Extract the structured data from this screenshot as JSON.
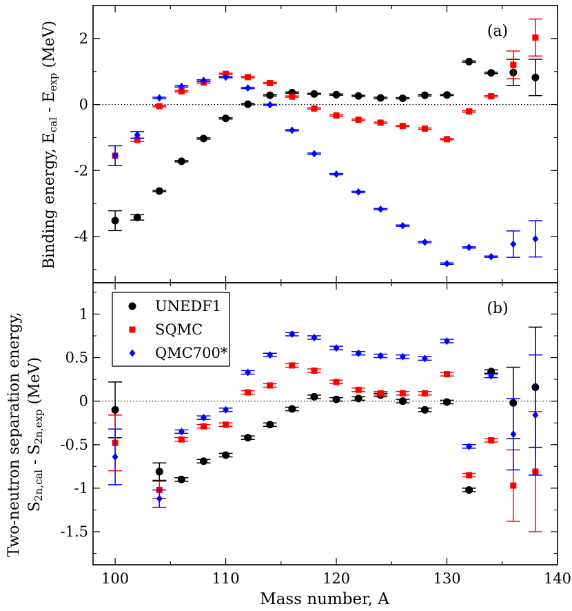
{
  "chart_data": [
    {
      "type": "scatter",
      "panel_label": "(a)",
      "ylabel_main": "Binding energy, E",
      "ylabel_sub1": "cal",
      "ylabel_mid": " - E",
      "ylabel_sub2": "exp",
      "ylabel_unit": " (MeV)",
      "ylim": [
        -5.4,
        3.0
      ],
      "xlim": [
        98,
        140
      ],
      "yticks": [
        -4,
        -2,
        0,
        2
      ],
      "ytick_labels": [
        "-4",
        "-2",
        "0",
        "2"
      ],
      "series": [
        {
          "name": "UNEDF1",
          "color": "#000000",
          "marker": "circle",
          "points": [
            {
              "x": 100,
              "y": -3.52,
              "err": 0.3
            },
            {
              "x": 102,
              "y": -3.42,
              "err": 0.08
            },
            {
              "x": 104,
              "y": -2.62,
              "err": 0.02
            },
            {
              "x": 106,
              "y": -1.72,
              "err": 0.02
            },
            {
              "x": 108,
              "y": -1.03,
              "err": 0.02
            },
            {
              "x": 110,
              "y": -0.42,
              "err": 0.02
            },
            {
              "x": 112,
              "y": 0.01,
              "err": 0.02
            },
            {
              "x": 114,
              "y": 0.28,
              "err": 0.02
            },
            {
              "x": 116,
              "y": 0.36,
              "err": 0.02
            },
            {
              "x": 118,
              "y": 0.32,
              "err": 0.02
            },
            {
              "x": 120,
              "y": 0.3,
              "err": 0.02
            },
            {
              "x": 122,
              "y": 0.26,
              "err": 0.02
            },
            {
              "x": 124,
              "y": 0.2,
              "err": 0.02
            },
            {
              "x": 126,
              "y": 0.19,
              "err": 0.02
            },
            {
              "x": 128,
              "y": 0.28,
              "err": 0.02
            },
            {
              "x": 130,
              "y": 0.29,
              "err": 0.02
            },
            {
              "x": 132,
              "y": 1.3,
              "err": 0.02
            },
            {
              "x": 134,
              "y": 0.96,
              "err": 0.02
            },
            {
              "x": 136,
              "y": 0.97,
              "err": 0.4
            },
            {
              "x": 138,
              "y": 0.82,
              "err": 0.55
            }
          ]
        },
        {
          "name": "SQMC",
          "color": "#ff0000",
          "marker": "square",
          "points": [
            {
              "x": 100,
              "y": -1.55,
              "err": 0.3
            },
            {
              "x": 102,
              "y": -1.07,
              "err": 0.05
            },
            {
              "x": 104,
              "y": -0.05,
              "err": 0.02
            },
            {
              "x": 106,
              "y": 0.4,
              "err": 0.02
            },
            {
              "x": 108,
              "y": 0.67,
              "err": 0.02
            },
            {
              "x": 110,
              "y": 0.93,
              "err": 0.02
            },
            {
              "x": 112,
              "y": 0.83,
              "err": 0.02
            },
            {
              "x": 114,
              "y": 0.65,
              "err": 0.02
            },
            {
              "x": 116,
              "y": 0.24,
              "err": 0.02
            },
            {
              "x": 118,
              "y": -0.12,
              "err": 0.02
            },
            {
              "x": 120,
              "y": -0.33,
              "err": 0.02
            },
            {
              "x": 122,
              "y": -0.46,
              "err": 0.02
            },
            {
              "x": 124,
              "y": -0.55,
              "err": 0.02
            },
            {
              "x": 126,
              "y": -0.65,
              "err": 0.02
            },
            {
              "x": 128,
              "y": -0.73,
              "err": 0.02
            },
            {
              "x": 130,
              "y": -1.05,
              "err": 0.02
            },
            {
              "x": 132,
              "y": -0.21,
              "err": 0.02
            },
            {
              "x": 134,
              "y": 0.25,
              "err": 0.02
            },
            {
              "x": 136,
              "y": 1.2,
              "err": 0.42
            },
            {
              "x": 138,
              "y": 2.03,
              "err": 0.56
            }
          ]
        },
        {
          "name": "QMC700*",
          "color": "#0000ff",
          "marker": "diamond",
          "points": [
            {
              "x": 100,
              "y": -1.55,
              "err": 0.3
            },
            {
              "x": 102,
              "y": -0.92,
              "err": 0.1
            },
            {
              "x": 104,
              "y": 0.2,
              "err": 0.02
            },
            {
              "x": 106,
              "y": 0.55,
              "err": 0.02
            },
            {
              "x": 108,
              "y": 0.73,
              "err": 0.02
            },
            {
              "x": 110,
              "y": 0.83,
              "err": 0.02
            },
            {
              "x": 112,
              "y": 0.5,
              "err": 0.02
            },
            {
              "x": 114,
              "y": -0.01,
              "err": 0.02
            },
            {
              "x": 116,
              "y": -0.78,
              "err": 0.02
            },
            {
              "x": 118,
              "y": -1.49,
              "err": 0.02
            },
            {
              "x": 120,
              "y": -2.11,
              "err": 0.02
            },
            {
              "x": 122,
              "y": -2.65,
              "err": 0.02
            },
            {
              "x": 124,
              "y": -3.17,
              "err": 0.02
            },
            {
              "x": 126,
              "y": -3.67,
              "err": 0.02
            },
            {
              "x": 128,
              "y": -4.17,
              "err": 0.02
            },
            {
              "x": 130,
              "y": -4.82,
              "err": 0.02
            },
            {
              "x": 132,
              "y": -4.33,
              "err": 0.02
            },
            {
              "x": 134,
              "y": -4.61,
              "err": 0.02
            },
            {
              "x": 136,
              "y": -4.23,
              "err": 0.4
            },
            {
              "x": 138,
              "y": -4.07,
              "err": 0.55
            }
          ]
        }
      ]
    },
    {
      "type": "scatter",
      "panel_label": "(b)",
      "ylabel_line1": "Two-neutron separation energy,",
      "ylabel_a": "S",
      "ylabel_a_sub": "2n,cal",
      "ylabel_b": " - S",
      "ylabel_b_sub": "2n,exp",
      "ylabel_unit": " (MeV)",
      "xlabel": "Mass number, A",
      "xlim": [
        98,
        140
      ],
      "ylim": [
        -1.88,
        1.36
      ],
      "xticks": [
        100,
        110,
        120,
        130,
        140
      ],
      "xtick_labels": [
        "100",
        "110",
        "120",
        "130",
        "140"
      ],
      "yticks": [
        -1.5,
        -1,
        -0.5,
        0,
        0.5,
        1
      ],
      "ytick_labels": [
        "-1.5",
        "-1",
        "-0.5",
        "0",
        "0.5",
        "1"
      ],
      "legend_position": "top-left",
      "series": [
        {
          "name": "UNEDF1",
          "color": "#000000",
          "marker": "circle",
          "points": [
            {
              "x": 100,
              "y": -0.1,
              "err": 0.32
            },
            {
              "x": 104,
              "y": -0.81,
              "err": 0.1
            },
            {
              "x": 106,
              "y": -0.9,
              "err": 0.02
            },
            {
              "x": 108,
              "y": -0.69,
              "err": 0.02
            },
            {
              "x": 110,
              "y": -0.62,
              "err": 0.02
            },
            {
              "x": 112,
              "y": -0.42,
              "err": 0.02
            },
            {
              "x": 114,
              "y": -0.27,
              "err": 0.02
            },
            {
              "x": 116,
              "y": -0.09,
              "err": 0.02
            },
            {
              "x": 118,
              "y": 0.05,
              "err": 0.02
            },
            {
              "x": 120,
              "y": 0.02,
              "err": 0.02
            },
            {
              "x": 122,
              "y": 0.03,
              "err": 0.02
            },
            {
              "x": 124,
              "y": 0.07,
              "err": 0.02
            },
            {
              "x": 126,
              "y": 0.0,
              "err": 0.02
            },
            {
              "x": 128,
              "y": -0.1,
              "err": 0.02
            },
            {
              "x": 130,
              "y": -0.01,
              "err": 0.02
            },
            {
              "x": 132,
              "y": -1.02,
              "err": 0.02
            },
            {
              "x": 134,
              "y": 0.34,
              "err": 0.02
            },
            {
              "x": 136,
              "y": -0.02,
              "err": 0.41
            },
            {
              "x": 138,
              "y": 0.16,
              "err": 0.69
            }
          ]
        },
        {
          "name": "SQMC",
          "color": "#ff0000",
          "marker": "square",
          "points": [
            {
              "x": 100,
              "y": -0.48,
              "err": 0.32
            },
            {
              "x": 104,
              "y": -1.02,
              "err": 0.1
            },
            {
              "x": 106,
              "y": -0.44,
              "err": 0.02
            },
            {
              "x": 108,
              "y": -0.29,
              "err": 0.02
            },
            {
              "x": 110,
              "y": -0.27,
              "err": 0.02
            },
            {
              "x": 112,
              "y": 0.1,
              "err": 0.02
            },
            {
              "x": 114,
              "y": 0.18,
              "err": 0.02
            },
            {
              "x": 116,
              "y": 0.41,
              "err": 0.02
            },
            {
              "x": 118,
              "y": 0.35,
              "err": 0.02
            },
            {
              "x": 120,
              "y": 0.22,
              "err": 0.02
            },
            {
              "x": 122,
              "y": 0.13,
              "err": 0.02
            },
            {
              "x": 124,
              "y": 0.09,
              "err": 0.02
            },
            {
              "x": 126,
              "y": 0.09,
              "err": 0.02
            },
            {
              "x": 128,
              "y": 0.09,
              "err": 0.02
            },
            {
              "x": 130,
              "y": 0.31,
              "err": 0.02
            },
            {
              "x": 132,
              "y": -0.85,
              "err": 0.02
            },
            {
              "x": 134,
              "y": -0.45,
              "err": 0.02
            },
            {
              "x": 136,
              "y": -0.97,
              "err": 0.41
            },
            {
              "x": 138,
              "y": -0.81,
              "err": 0.69
            }
          ]
        },
        {
          "name": "QMC700*",
          "color": "#0000ff",
          "marker": "diamond",
          "points": [
            {
              "x": 100,
              "y": -0.64,
              "err": 0.32
            },
            {
              "x": 104,
              "y": -1.12,
              "err": 0.1
            },
            {
              "x": 106,
              "y": -0.35,
              "err": 0.02
            },
            {
              "x": 108,
              "y": -0.19,
              "err": 0.02
            },
            {
              "x": 110,
              "y": -0.1,
              "err": 0.02
            },
            {
              "x": 112,
              "y": 0.33,
              "err": 0.02
            },
            {
              "x": 114,
              "y": 0.53,
              "err": 0.02
            },
            {
              "x": 116,
              "y": 0.77,
              "err": 0.02
            },
            {
              "x": 118,
              "y": 0.73,
              "err": 0.02
            },
            {
              "x": 120,
              "y": 0.61,
              "err": 0.02
            },
            {
              "x": 122,
              "y": 0.55,
              "err": 0.02
            },
            {
              "x": 124,
              "y": 0.52,
              "err": 0.02
            },
            {
              "x": 126,
              "y": 0.51,
              "err": 0.02
            },
            {
              "x": 128,
              "y": 0.49,
              "err": 0.02
            },
            {
              "x": 130,
              "y": 0.69,
              "err": 0.02
            },
            {
              "x": 132,
              "y": -0.52,
              "err": 0.02
            },
            {
              "x": 134,
              "y": 0.29,
              "err": 0.02
            },
            {
              "x": 136,
              "y": -0.38,
              "err": 0.41
            },
            {
              "x": 138,
              "y": -0.16,
              "err": 0.69
            }
          ]
        }
      ]
    }
  ]
}
